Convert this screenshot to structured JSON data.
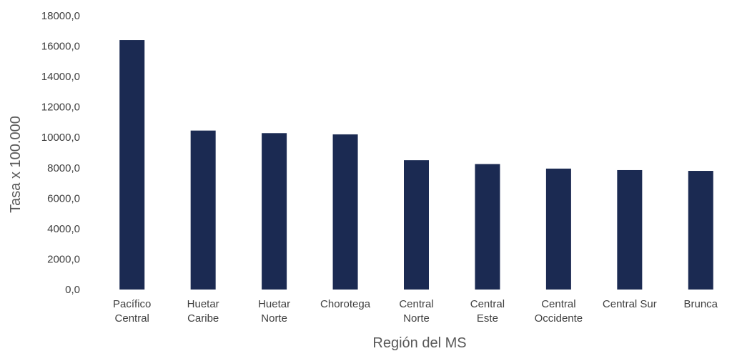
{
  "chart_data": {
    "type": "bar",
    "title": "",
    "xlabel": "Región del MS",
    "ylabel": "Tasa x 100.000",
    "categories": [
      [
        "Pacífico",
        "Central"
      ],
      [
        "Huetar",
        "Caribe"
      ],
      [
        "Huetar",
        "Norte"
      ],
      [
        "Chorotega"
      ],
      [
        "Central",
        "Norte"
      ],
      [
        "Central",
        "Este"
      ],
      [
        "Central",
        "Occidente"
      ],
      [
        "Central Sur"
      ],
      [
        "Brunca"
      ]
    ],
    "values": [
      16400,
      10450,
      10280,
      10200,
      8500,
      8250,
      7950,
      7850,
      7800
    ],
    "ylim": [
      0,
      18000
    ],
    "yticks": [
      "0,0",
      "2000,0",
      "4000,0",
      "6000,0",
      "8000,0",
      "10000,0",
      "12000,0",
      "14000,0",
      "16000,0",
      "18000,0"
    ],
    "grid": false,
    "legend": "none",
    "bar_color": "#1b2a52"
  }
}
